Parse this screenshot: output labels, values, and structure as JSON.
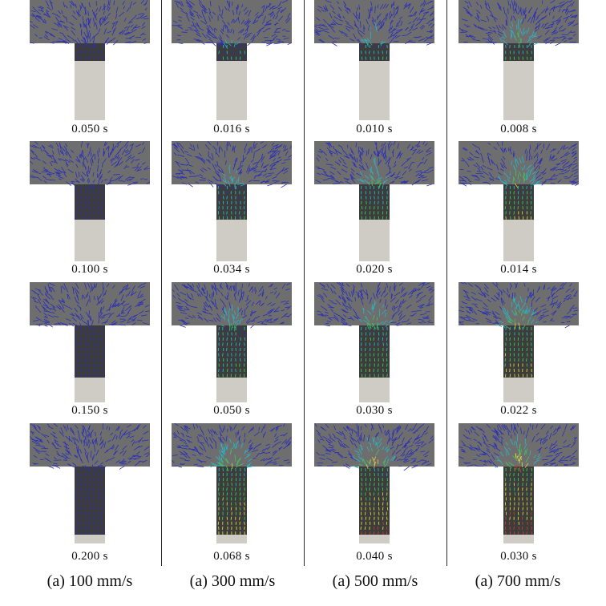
{
  "colors": {
    "arrow_blue": "#2a2fb8",
    "arrow_cyan": "#27b6c6",
    "arrow_green": "#3cc85a",
    "arrow_yellow": "#d8d83a",
    "arrow_red": "#c83c28",
    "fluid_gray": "#6e6e6e",
    "solid_light": "#cfccc5"
  },
  "columns": [
    {
      "label": "(a) 100 mm/s",
      "frames": [
        {
          "time": "0.050 s",
          "fill": 0.0,
          "intensity": 0.05
        },
        {
          "time": "0.100 s",
          "fill": 0.0,
          "intensity": 0.08
        },
        {
          "time": "0.150 s",
          "fill": 0.0,
          "intensity": 0.1
        },
        {
          "time": "0.200 s",
          "fill": 0.0,
          "intensity": 0.12
        }
      ]
    },
    {
      "label": "(a) 300 mm/s",
      "frames": [
        {
          "time": "0.016 s",
          "fill": 0.0,
          "intensity": 0.3
        },
        {
          "time": "0.034 s",
          "fill": 0.0,
          "intensity": 0.4
        },
        {
          "time": "0.050 s",
          "fill": 0.0,
          "intensity": 0.45
        },
        {
          "time": "0.068 s",
          "fill": 0.0,
          "intensity": 0.75
        }
      ]
    },
    {
      "label": "(a) 500 mm/s",
      "frames": [
        {
          "time": "0.010 s",
          "fill": 0.0,
          "intensity": 0.4
        },
        {
          "time": "0.020 s",
          "fill": 0.0,
          "intensity": 0.55
        },
        {
          "time": "0.030 s",
          "fill": 0.0,
          "intensity": 0.6
        },
        {
          "time": "0.040 s",
          "fill": 0.0,
          "intensity": 0.85
        }
      ]
    },
    {
      "label": "(a) 700 mm/s",
      "frames": [
        {
          "time": "0.008 s",
          "fill": 0.0,
          "intensity": 0.6
        },
        {
          "time": "0.014 s",
          "fill": 0.0,
          "intensity": 0.7
        },
        {
          "time": "0.022 s",
          "fill": 0.0,
          "intensity": 0.75
        },
        {
          "time": "0.030 s",
          "fill": 0.0,
          "intensity": 0.95
        }
      ]
    }
  ]
}
